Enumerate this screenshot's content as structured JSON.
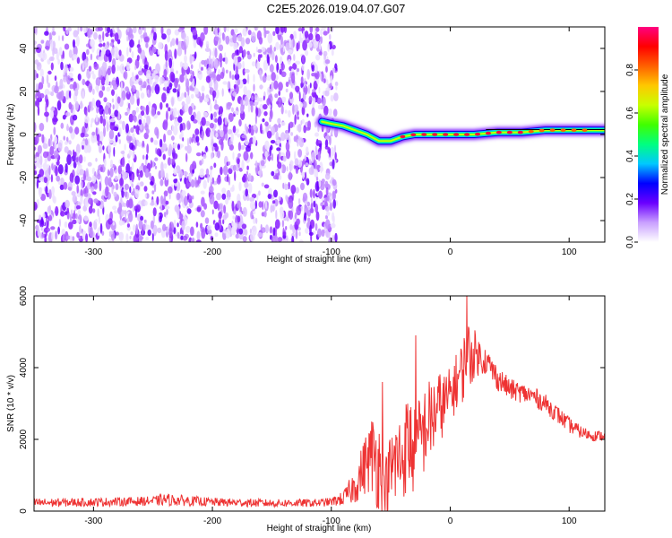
{
  "title": "C2E5.2026.019.04.07.G07",
  "chart_data": [
    {
      "type": "heatmap",
      "name": "spectrogram",
      "xlabel": "Height of straight line (km)",
      "ylabel": "Frequency (Hz)",
      "xlim": [
        -350,
        130
      ],
      "ylim": [
        -50,
        50
      ],
      "xticks": [
        -300,
        -200,
        -100,
        0,
        100
      ],
      "xtick_labels": [
        "-300",
        "-200",
        "-100",
        "0",
        "100"
      ],
      "yticks": [
        -40,
        -20,
        0,
        20,
        40
      ],
      "ytick_labels": [
        "-40",
        "-20",
        "0",
        "20",
        "40"
      ],
      "noise_region_x": [
        -350,
        -100
      ],
      "signal_trace": {
        "x": [
          -108,
          -100,
          -90,
          -80,
          -70,
          -60,
          -50,
          -40,
          -30,
          -20,
          -10,
          0,
          20,
          40,
          60,
          80,
          100,
          120,
          130
        ],
        "freq": [
          6,
          5,
          4,
          2,
          0,
          -3,
          -3,
          -1,
          0,
          0,
          0,
          0,
          0,
          1,
          1,
          2,
          2,
          2,
          2
        ]
      },
      "colorbar": {
        "label": "Normalized spectral amplitude",
        "range": [
          0,
          1
        ],
        "ticks": [
          0.0,
          0.2,
          0.4,
          0.6,
          0.8
        ],
        "tick_labels": [
          "0.0",
          "0.2",
          "0.4",
          "0.6",
          "0.8"
        ],
        "colors": [
          "#ffffff",
          "#c9a0ff",
          "#6a00ff",
          "#0000ff",
          "#00c8ff",
          "#00ff80",
          "#40ff00",
          "#c8ff00",
          "#ffc800",
          "#ff6000",
          "#ff0000",
          "#ff0080"
        ]
      }
    },
    {
      "type": "line",
      "name": "snr",
      "xlabel": "Height of straight line (km)",
      "ylabel": "SNR (10 * v/v)",
      "xlim": [
        -350,
        130
      ],
      "ylim": [
        0,
        6000
      ],
      "xticks": [
        -300,
        -200,
        -100,
        0,
        100
      ],
      "xtick_labels": [
        "-300",
        "-200",
        "-100",
        "0",
        "100"
      ],
      "yticks": [
        0,
        2000,
        4000,
        6000
      ],
      "ytick_labels": [
        "0",
        "2000",
        "4000",
        "6000"
      ],
      "color": "#ee3333",
      "envelope": {
        "x": [
          -350,
          -300,
          -250,
          -240,
          -200,
          -150,
          -110,
          -100,
          -90,
          -80,
          -70,
          -65,
          -60,
          -55,
          -50,
          -45,
          -40,
          -35,
          -30,
          -25,
          -20,
          -15,
          -10,
          -5,
          0,
          5,
          10,
          15,
          20,
          25,
          30,
          40,
          50,
          60,
          70,
          80,
          90,
          100,
          110,
          120,
          130
        ],
        "mean": [
          230,
          250,
          280,
          320,
          250,
          220,
          230,
          260,
          350,
          700,
          1400,
          1600,
          1300,
          700,
          1100,
          1400,
          1500,
          2000,
          1600,
          2000,
          2400,
          2600,
          2900,
          3000,
          3200,
          3600,
          3900,
          4300,
          4400,
          4300,
          4200,
          3700,
          3400,
          3300,
          3200,
          3000,
          2700,
          2400,
          2200,
          2100,
          2100
        ],
        "spread": [
          120,
          120,
          130,
          170,
          120,
          110,
          110,
          120,
          200,
          500,
          900,
          1200,
          1400,
          700,
          1200,
          1400,
          1200,
          1500,
          1300,
          1300,
          1200,
          1200,
          1000,
          900,
          800,
          800,
          900,
          1100,
          700,
          500,
          400,
          350,
          300,
          280,
          280,
          260,
          250,
          220,
          180,
          150,
          140
        ]
      },
      "peaks": [
        {
          "x": -57,
          "y": 3600
        },
        {
          "x": -29,
          "y": 4900
        },
        {
          "x": 14,
          "y": 6000
        }
      ]
    }
  ]
}
